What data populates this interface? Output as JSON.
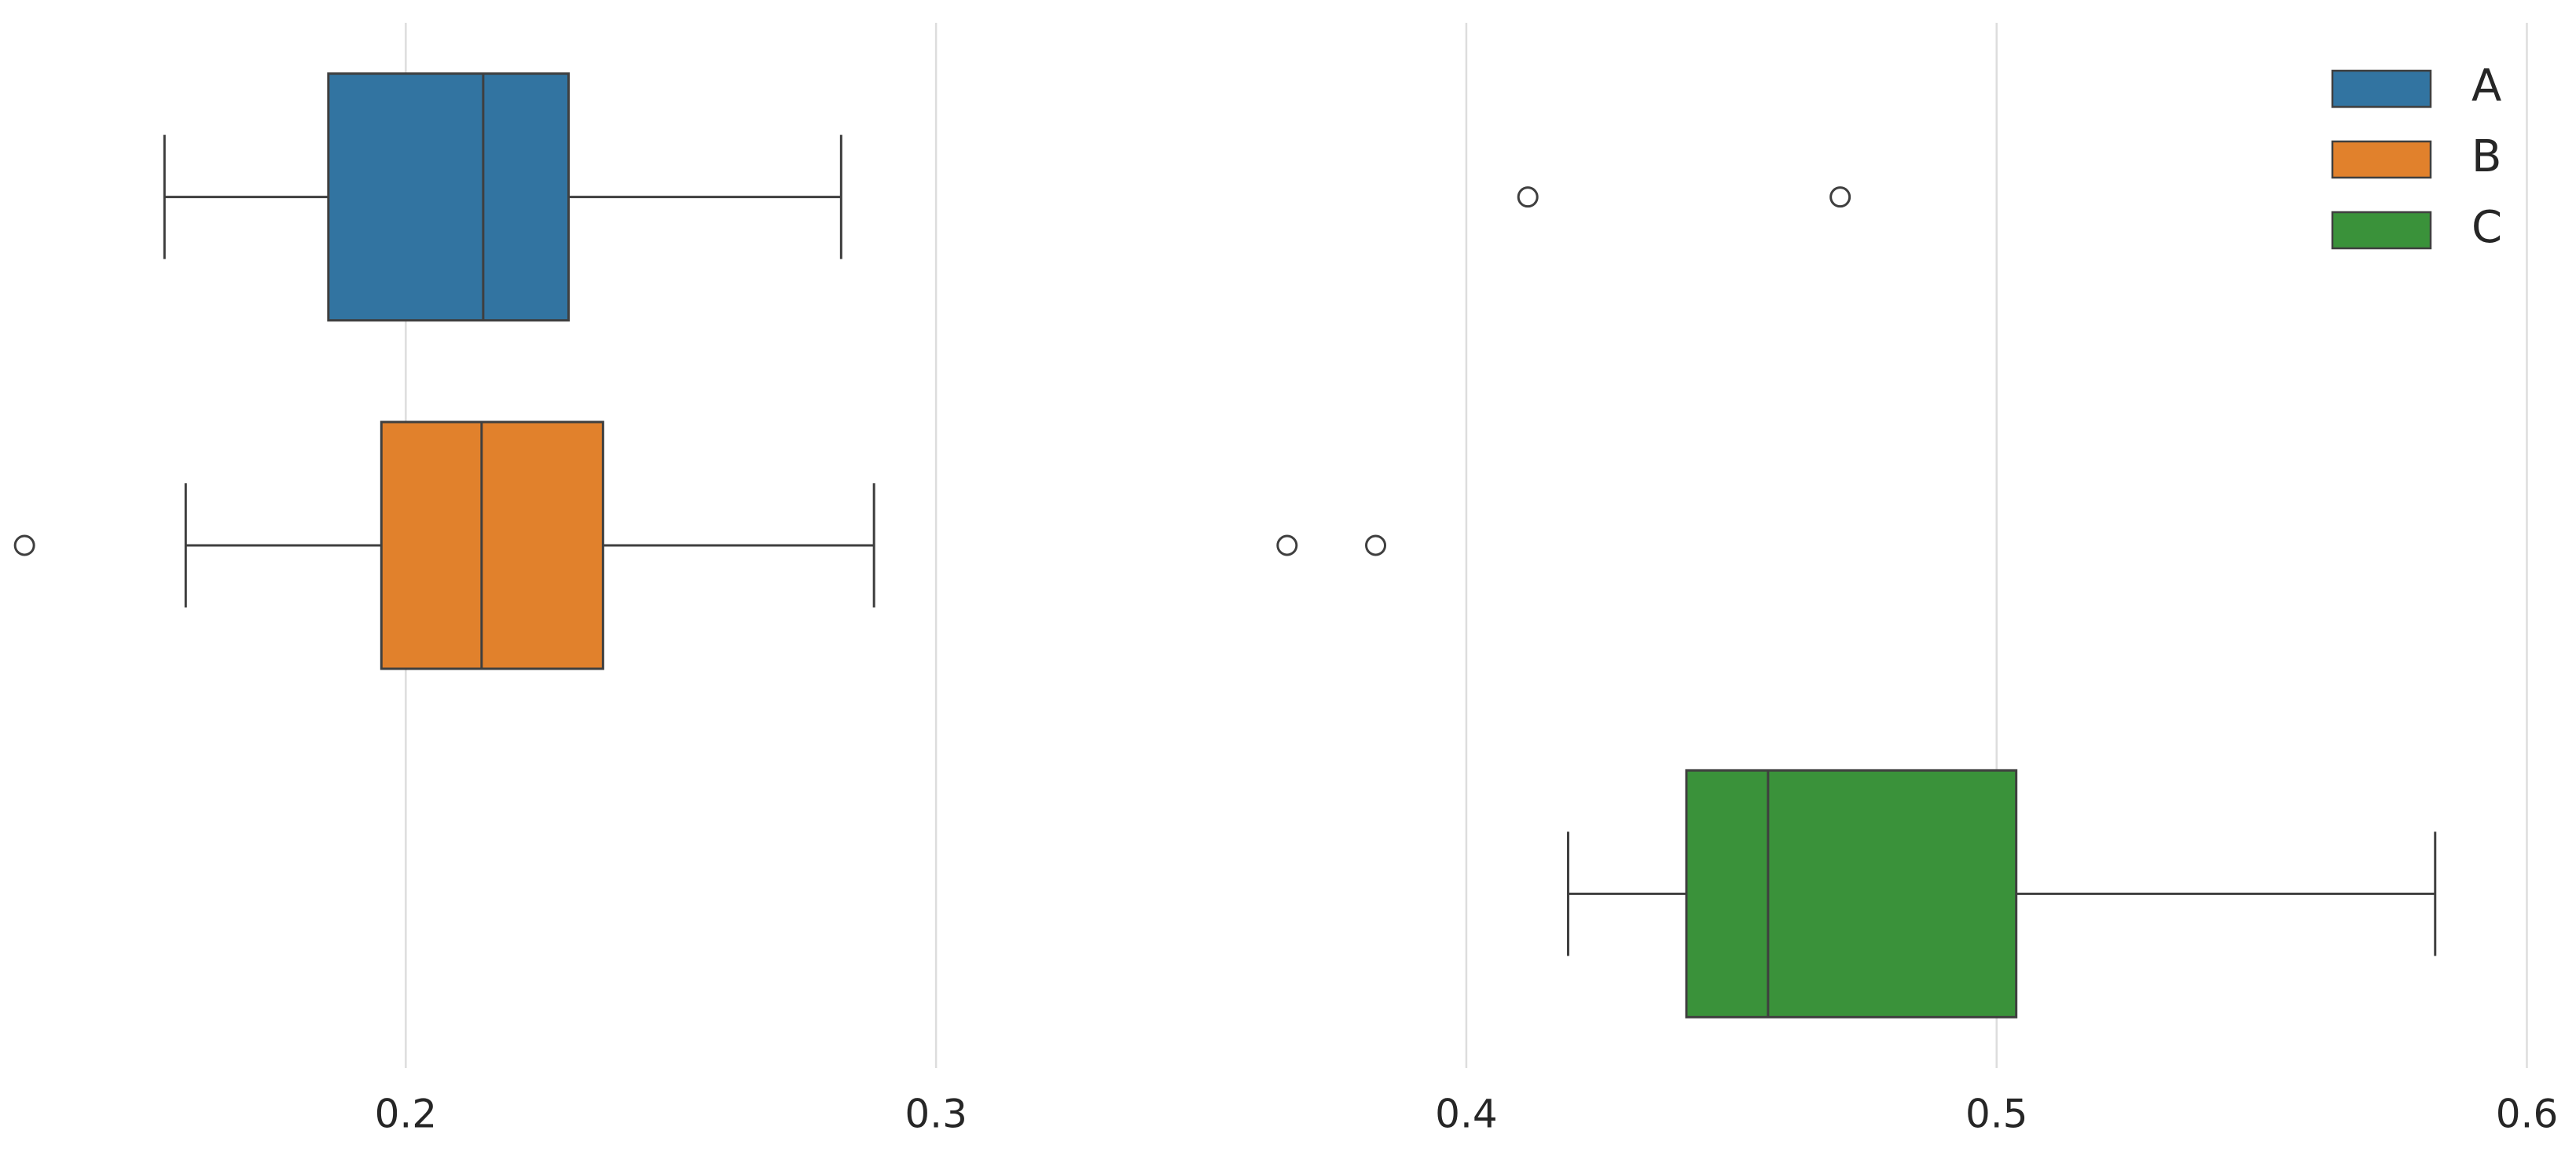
{
  "chart_data": {
    "type": "box",
    "xlim": [
      0.126,
      0.602
    ],
    "xticks": [
      0.2,
      0.3,
      0.4,
      0.5,
      0.6
    ],
    "grid": true,
    "legend": "upper right",
    "series": [
      {
        "name": "A",
        "color": "#3274a1",
        "whislo": 0.1545,
        "q1": 0.1854,
        "med": 0.2146,
        "q3": 0.2307,
        "whishi": 0.2821,
        "fliers": [
          0.4116,
          0.4705
        ]
      },
      {
        "name": "B",
        "color": "#e1812c",
        "whislo": 0.1585,
        "q1": 0.1954,
        "med": 0.2143,
        "q3": 0.2372,
        "whishi": 0.2883,
        "fliers": [
          0.1281,
          0.3662,
          0.3829
        ]
      },
      {
        "name": "C",
        "color": "#3a923a",
        "whislo": 0.4192,
        "q1": 0.4415,
        "med": 0.4569,
        "q3": 0.5037,
        "whishi": 0.5827,
        "fliers": []
      }
    ]
  }
}
